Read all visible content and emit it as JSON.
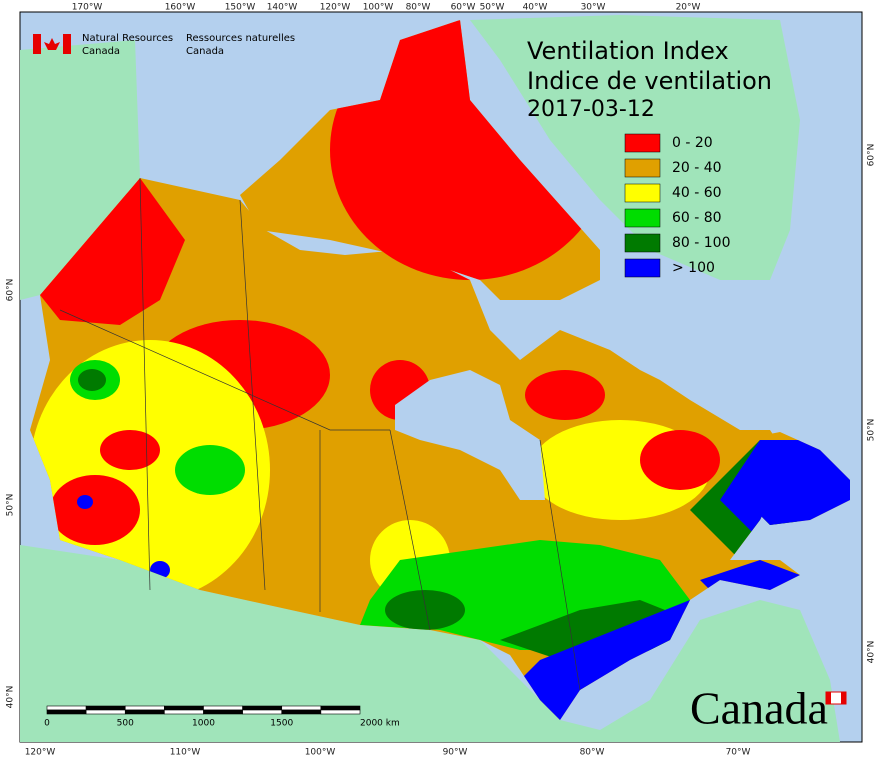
{
  "header": {
    "department_en": [
      "Natural Resources",
      "Canada"
    ],
    "department_fr": [
      "Ressources naturelles",
      "Canada"
    ]
  },
  "title": {
    "lines": [
      "Ventilation Index",
      "Indice de ventilation"
    ],
    "date": "2017-03-12"
  },
  "legend": [
    {
      "label": "0 - 20",
      "color": "#ff0000"
    },
    {
      "label": "20 - 40",
      "color": "#e0a000"
    },
    {
      "label": "40 - 60",
      "color": "#ffff00"
    },
    {
      "label": "60 - 80",
      "color": "#00dd00"
    },
    {
      "label": "80 - 100",
      "color": "#007a00"
    },
    {
      "label": "> 100",
      "color": "#0000ff"
    }
  ],
  "graticule": {
    "top": [
      "170°W",
      "160°W",
      "150°W",
      "140°W",
      "120°W",
      "100°W",
      "80°W",
      "60°W",
      "50°W",
      "40°W",
      "30°W",
      "20°W"
    ],
    "bottom": [
      "120°W",
      "110°W",
      "100°W",
      "90°W",
      "80°W",
      "70°W"
    ],
    "left": [
      "60°N",
      "50°N",
      "40°N"
    ],
    "right": [
      "60°N",
      "50°N",
      "40°N"
    ]
  },
  "scale_bar": {
    "ticks": [
      "0",
      "500",
      "1000",
      "1500",
      "2000 km"
    ]
  },
  "wordmark": "Canada"
}
